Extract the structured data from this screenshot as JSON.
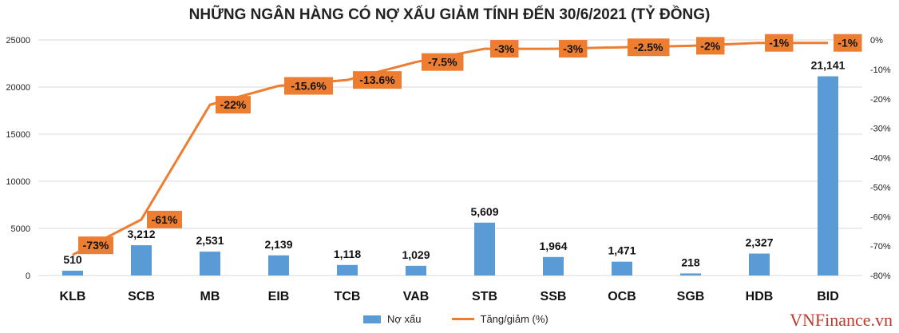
{
  "chart_data": {
    "type": "bar+line",
    "title": "NHỮNG NGÂN HÀNG CÓ NỢ XẤU GIẢM TÍNH ĐẾN 30/6/2021 (TỶ ĐỒNG)",
    "categories": [
      "KLB",
      "SCB",
      "MB",
      "EIB",
      "TCB",
      "VAB",
      "STB",
      "SSB",
      "OCB",
      "SGB",
      "HDB",
      "BID"
    ],
    "series": [
      {
        "name": "Nợ xấu",
        "type": "bar",
        "axis": "left",
        "values": [
          510,
          3212,
          2531,
          2139,
          1118,
          1029,
          5609,
          1964,
          1471,
          218,
          2327,
          21141
        ],
        "labels": [
          "510",
          "3,212",
          "2,531",
          "2,139",
          "1,118",
          "1,029",
          "5,609",
          "1,964",
          "1,471",
          "218",
          "2,327",
          "21,141"
        ],
        "color": "#5b9bd5"
      },
      {
        "name": "Tăng/giảm (%)",
        "type": "line",
        "axis": "right",
        "values": [
          -73,
          -61,
          -22,
          -15.6,
          -13.6,
          -7.5,
          -3,
          -3,
          -2.5,
          -2,
          -1,
          -1
        ],
        "labels": [
          "-73%",
          "-61%",
          "-22%",
          "-15.6%",
          "-13.6%",
          "-7.5%",
          "-3%",
          "-3%",
          "-2.5%",
          "-2%",
          "-1%",
          "-1%"
        ],
        "color": "#ed7d31"
      }
    ],
    "ylim": [
      0,
      25000
    ],
    "yticks": [
      "0",
      "5000",
      "10000",
      "15000",
      "20000",
      "25000"
    ],
    "y2lim": [
      -80,
      0
    ],
    "y2ticks": [
      "-80%",
      "-70%",
      "-60%",
      "-50%",
      "-40%",
      "-30%",
      "-20%",
      "-10%",
      "0%"
    ],
    "grid": true,
    "legend": "bottom"
  },
  "legend": {
    "bar": "Nợ xấu",
    "line": "Tăng/giảm (%)"
  },
  "watermark": "VNFinance.vn"
}
